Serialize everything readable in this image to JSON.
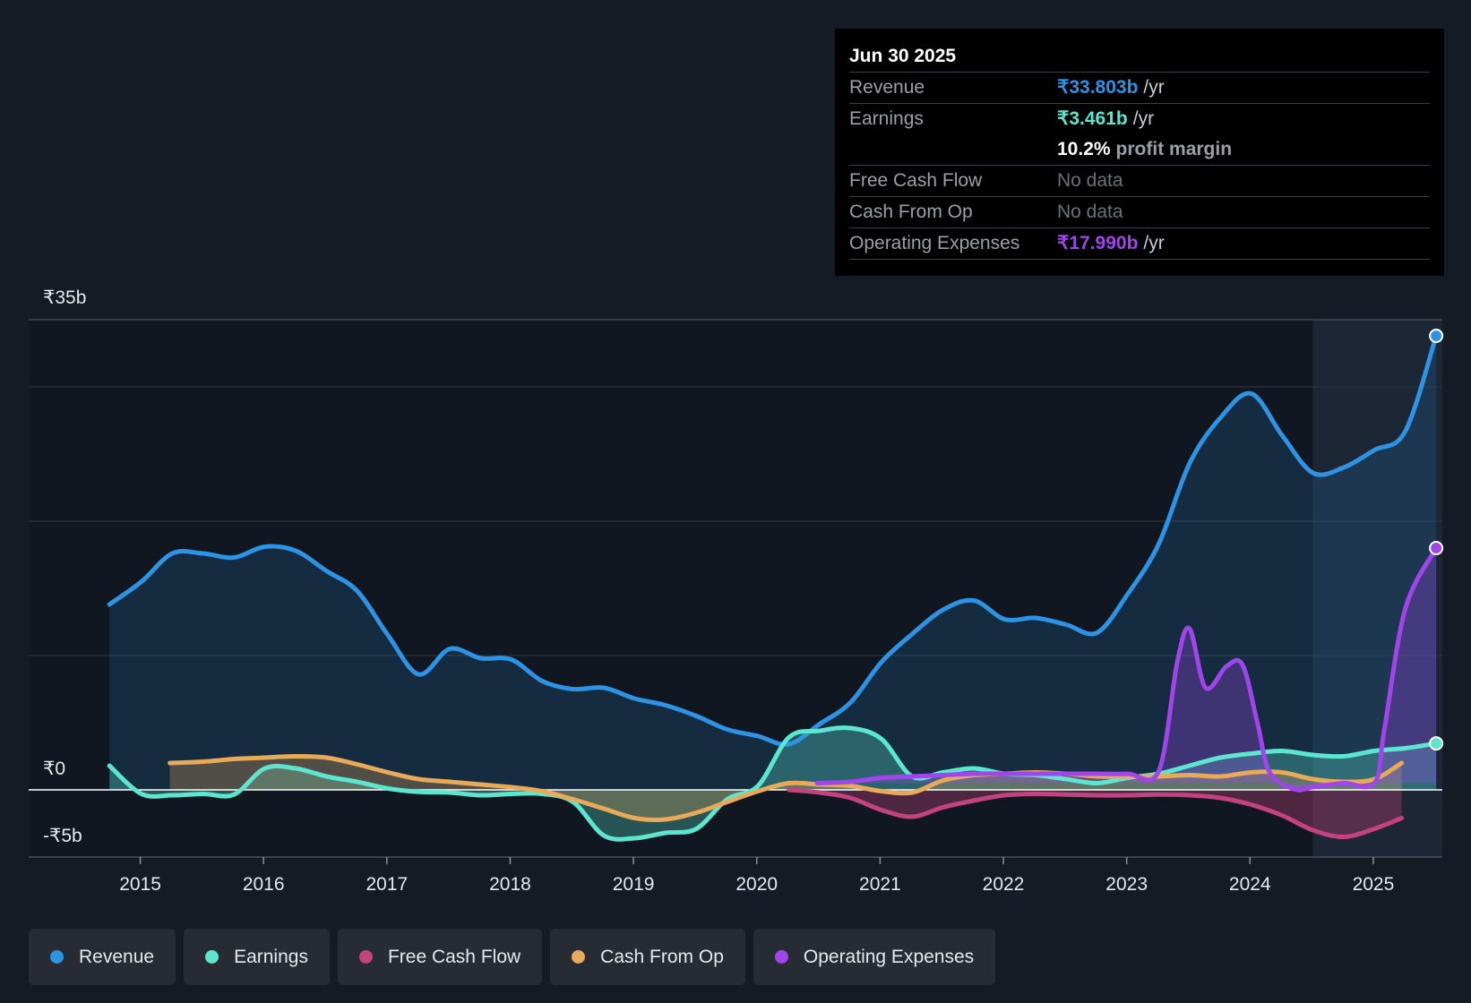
{
  "tooltip": {
    "date": "Jun 30 2025",
    "revenue_label": "Revenue",
    "revenue_value": "₹33.803b",
    "revenue_unit": "/yr",
    "earnings_label": "Earnings",
    "earnings_value": "₹3.461b",
    "earnings_unit": "/yr",
    "margin_value": "10.2%",
    "margin_label": "profit margin",
    "fcf_label": "Free Cash Flow",
    "fcf_value": "No data",
    "cfo_label": "Cash From Op",
    "cfo_value": "No data",
    "opex_label": "Operating Expenses",
    "opex_value": "₹17.990b",
    "opex_unit": "/yr"
  },
  "chart_data": {
    "type": "area",
    "y_labels": {
      "top": "₹35b",
      "zero": "₹0",
      "bottom": "-₹5b"
    },
    "ylim": [
      -5,
      35
    ],
    "xlim": [
      2014.55,
      2025.55
    ],
    "x_tick_labels": [
      "2015",
      "2016",
      "2017",
      "2018",
      "2019",
      "2020",
      "2021",
      "2022",
      "2023",
      "2024",
      "2025"
    ],
    "x_ticks": [
      2014.99,
      2015.99,
      2016.99,
      2017.99,
      2018.99,
      2019.99,
      2020.99,
      2021.99,
      2022.99,
      2023.99,
      2024.99
    ],
    "forecast_start": 2024.5,
    "series": [
      {
        "name": "Revenue",
        "color": "#2d93e5",
        "fill_mode": "zero",
        "points": [
          [
            2014.74,
            13.8
          ],
          [
            2015.0,
            15.5
          ],
          [
            2015.25,
            17.6
          ],
          [
            2015.5,
            17.6
          ],
          [
            2015.75,
            17.3
          ],
          [
            2016.0,
            18.1
          ],
          [
            2016.25,
            17.8
          ],
          [
            2016.5,
            16.3
          ],
          [
            2016.75,
            14.8
          ],
          [
            2017.0,
            11.5
          ],
          [
            2017.25,
            8.6
          ],
          [
            2017.5,
            10.5
          ],
          [
            2017.75,
            9.8
          ],
          [
            2018.0,
            9.7
          ],
          [
            2018.25,
            8.1
          ],
          [
            2018.5,
            7.5
          ],
          [
            2018.75,
            7.6
          ],
          [
            2019.0,
            6.8
          ],
          [
            2019.25,
            6.3
          ],
          [
            2019.5,
            5.5
          ],
          [
            2019.75,
            4.5
          ],
          [
            2020.0,
            4.0
          ],
          [
            2020.25,
            3.4
          ],
          [
            2020.5,
            4.9
          ],
          [
            2020.75,
            6.5
          ],
          [
            2021.0,
            9.5
          ],
          [
            2021.25,
            11.6
          ],
          [
            2021.5,
            13.4
          ],
          [
            2021.75,
            14.1
          ],
          [
            2022.0,
            12.7
          ],
          [
            2022.25,
            12.8
          ],
          [
            2022.5,
            12.3
          ],
          [
            2022.75,
            11.7
          ],
          [
            2023.0,
            14.6
          ],
          [
            2023.25,
            18.3
          ],
          [
            2023.5,
            24.3
          ],
          [
            2023.75,
            27.7
          ],
          [
            2024.0,
            29.5
          ],
          [
            2024.25,
            26.4
          ],
          [
            2024.5,
            23.6
          ],
          [
            2024.75,
            24.0
          ],
          [
            2025.0,
            25.3
          ],
          [
            2025.25,
            26.7
          ],
          [
            2025.5,
            33.8
          ]
        ]
      },
      {
        "name": "Earnings",
        "color": "#5de6cf",
        "fill_mode": "zero",
        "points": [
          [
            2014.74,
            1.8
          ],
          [
            2015.0,
            -0.3
          ],
          [
            2015.25,
            -0.4
          ],
          [
            2015.5,
            -0.3
          ],
          [
            2015.75,
            -0.35
          ],
          [
            2016.0,
            1.6
          ],
          [
            2016.25,
            1.6
          ],
          [
            2016.5,
            1.0
          ],
          [
            2016.75,
            0.6
          ],
          [
            2017.0,
            0.1
          ],
          [
            2017.25,
            -0.15
          ],
          [
            2017.5,
            -0.2
          ],
          [
            2017.75,
            -0.4
          ],
          [
            2018.0,
            -0.3
          ],
          [
            2018.25,
            -0.3
          ],
          [
            2018.5,
            -0.9
          ],
          [
            2018.75,
            -3.4
          ],
          [
            2019.0,
            -3.6
          ],
          [
            2019.25,
            -3.2
          ],
          [
            2019.5,
            -2.9
          ],
          [
            2019.75,
            -0.7
          ],
          [
            2020.0,
            0.3
          ],
          [
            2020.25,
            3.9
          ],
          [
            2020.5,
            4.4
          ],
          [
            2020.75,
            4.6
          ],
          [
            2021.0,
            3.8
          ],
          [
            2021.25,
            1.0
          ],
          [
            2021.5,
            1.3
          ],
          [
            2021.75,
            1.6
          ],
          [
            2022.0,
            1.2
          ],
          [
            2022.25,
            1.1
          ],
          [
            2022.5,
            0.8
          ],
          [
            2022.75,
            0.5
          ],
          [
            2023.0,
            0.9
          ],
          [
            2023.25,
            1.2
          ],
          [
            2023.5,
            1.8
          ],
          [
            2023.75,
            2.4
          ],
          [
            2024.0,
            2.7
          ],
          [
            2024.25,
            2.9
          ],
          [
            2024.5,
            2.6
          ],
          [
            2024.75,
            2.5
          ],
          [
            2025.0,
            2.9
          ],
          [
            2025.25,
            3.1
          ],
          [
            2025.5,
            3.46
          ]
        ]
      },
      {
        "name": "Free Cash Flow",
        "color": "#c2437d",
        "fill_mode": "zero",
        "points": [
          [
            2020.25,
            0.0
          ],
          [
            2020.5,
            -0.2
          ],
          [
            2020.75,
            -0.6
          ],
          [
            2021.0,
            -1.5
          ],
          [
            2021.25,
            -2.0
          ],
          [
            2021.5,
            -1.3
          ],
          [
            2021.75,
            -0.8
          ],
          [
            2022.0,
            -0.4
          ],
          [
            2022.25,
            -0.3
          ],
          [
            2022.5,
            -0.35
          ],
          [
            2022.75,
            -0.4
          ],
          [
            2023.0,
            -0.4
          ],
          [
            2023.25,
            -0.35
          ],
          [
            2023.5,
            -0.4
          ],
          [
            2023.75,
            -0.6
          ],
          [
            2024.0,
            -1.1
          ],
          [
            2024.25,
            -1.9
          ],
          [
            2024.5,
            -3.0
          ],
          [
            2024.75,
            -3.5
          ],
          [
            2025.0,
            -2.9
          ],
          [
            2025.22,
            -2.1
          ]
        ]
      },
      {
        "name": "Cash From Op",
        "color": "#e8a958",
        "fill_mode": "zero",
        "points": [
          [
            2015.23,
            2.0
          ],
          [
            2015.5,
            2.1
          ],
          [
            2015.75,
            2.3
          ],
          [
            2016.0,
            2.4
          ],
          [
            2016.25,
            2.5
          ],
          [
            2016.5,
            2.4
          ],
          [
            2016.75,
            1.9
          ],
          [
            2017.0,
            1.3
          ],
          [
            2017.25,
            0.8
          ],
          [
            2017.5,
            0.6
          ],
          [
            2017.75,
            0.4
          ],
          [
            2018.0,
            0.2
          ],
          [
            2018.25,
            -0.1
          ],
          [
            2018.5,
            -0.7
          ],
          [
            2018.75,
            -1.4
          ],
          [
            2019.0,
            -2.1
          ],
          [
            2019.25,
            -2.2
          ],
          [
            2019.5,
            -1.7
          ],
          [
            2019.75,
            -0.9
          ],
          [
            2020.0,
            -0.1
          ],
          [
            2020.25,
            0.5
          ],
          [
            2020.5,
            0.4
          ],
          [
            2020.75,
            0.3
          ],
          [
            2021.0,
            -0.1
          ],
          [
            2021.25,
            -0.2
          ],
          [
            2021.5,
            0.7
          ],
          [
            2021.75,
            1.1
          ],
          [
            2022.0,
            1.2
          ],
          [
            2022.25,
            1.3
          ],
          [
            2022.5,
            1.2
          ],
          [
            2022.75,
            1.0
          ],
          [
            2023.0,
            1.0
          ],
          [
            2023.25,
            1.0
          ],
          [
            2023.5,
            1.1
          ],
          [
            2023.75,
            1.0
          ],
          [
            2024.0,
            1.3
          ],
          [
            2024.25,
            1.3
          ],
          [
            2024.5,
            0.8
          ],
          [
            2024.75,
            0.6
          ],
          [
            2025.0,
            0.8
          ],
          [
            2025.22,
            2.0
          ]
        ]
      },
      {
        "name": "Operating Expenses",
        "color": "#a045ec",
        "fill_mode": "base",
        "points": [
          [
            2020.48,
            0.5
          ],
          [
            2020.75,
            0.6
          ],
          [
            2021.0,
            0.9
          ],
          [
            2021.25,
            1.0
          ],
          [
            2021.5,
            1.1
          ],
          [
            2021.75,
            1.2
          ],
          [
            2022.0,
            1.2
          ],
          [
            2022.25,
            1.2
          ],
          [
            2022.5,
            1.2
          ],
          [
            2022.75,
            1.2
          ],
          [
            2023.0,
            1.2
          ],
          [
            2023.25,
            1.4
          ],
          [
            2023.4,
            9.5
          ],
          [
            2023.5,
            12.0
          ],
          [
            2023.63,
            7.6
          ],
          [
            2023.8,
            9.2
          ],
          [
            2023.93,
            9.3
          ],
          [
            2024.05,
            5.0
          ],
          [
            2024.15,
            1.3
          ],
          [
            2024.35,
            0.05
          ],
          [
            2024.5,
            0.2
          ],
          [
            2024.75,
            0.5
          ],
          [
            2025.0,
            0.5
          ],
          [
            2025.08,
            4.5
          ],
          [
            2025.25,
            13.5
          ],
          [
            2025.5,
            18.0
          ]
        ]
      }
    ]
  },
  "legend": {
    "revenue": "Revenue",
    "earnings": "Earnings",
    "fcf": "Free Cash Flow",
    "cfo": "Cash From Op",
    "opex": "Operating Expenses"
  },
  "colors": {
    "revenue": "#2d93e5",
    "earnings": "#5de6cf",
    "fcf": "#c2437d",
    "cfo": "#e8a958",
    "opex": "#a045ec"
  }
}
